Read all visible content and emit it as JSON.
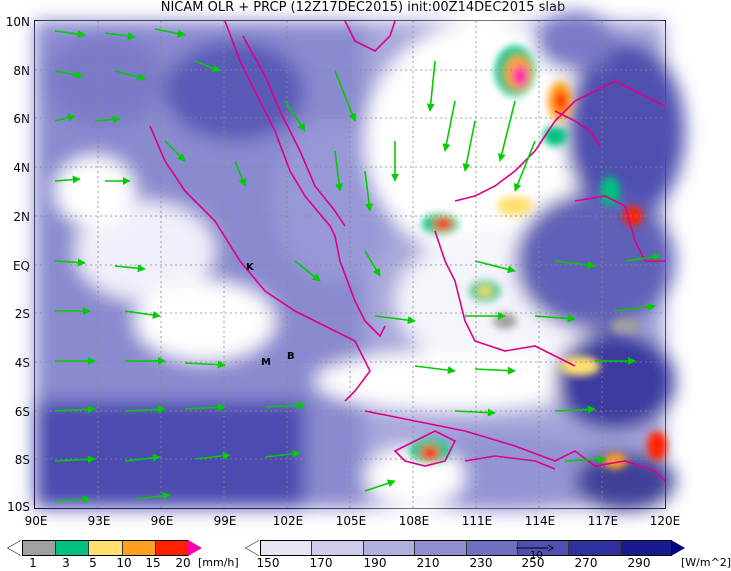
{
  "title": "NICAM OLR + PRCP (12Z17DEC2015) init:00Z14DEC2015 slab",
  "y_axis": {
    "labels": [
      "10N",
      "8N",
      "6N",
      "4N",
      "2N",
      "EQ",
      "2S",
      "4S",
      "6S",
      "8S",
      "10S"
    ]
  },
  "x_axis": {
    "labels": [
      "90E",
      "93E",
      "96E",
      "99E",
      "102E",
      "105E",
      "108E",
      "111E",
      "114E",
      "117E",
      "120E"
    ]
  },
  "markers": [
    {
      "label": "K"
    },
    {
      "label": "M"
    },
    {
      "label": "B"
    }
  ],
  "precip_legend": {
    "ticks": [
      "1",
      "3",
      "5",
      "10",
      "15",
      "20"
    ],
    "unit": "[mm/h]",
    "colors": [
      "#ffffff",
      "#a0a0a0",
      "#00c080",
      "#ffe070",
      "#ffa020",
      "#ff2000",
      "#ff00b0"
    ]
  },
  "olr_legend": {
    "ticks": [
      "150",
      "170",
      "190",
      "210",
      "230",
      "250",
      "270",
      "290"
    ],
    "unit": "[W/m^2]",
    "vector_ref": "10",
    "colors": [
      "#ffffff",
      "#e6e6f5",
      "#cdcdeb",
      "#b0b0e0",
      "#9090d0",
      "#7070c0",
      "#5050b0",
      "#3030a0",
      "#1a1a90",
      "#000080"
    ]
  },
  "colors": {
    "wind_vectors": "#00cc00",
    "coastline": "#dd0088",
    "gridline": "#888888"
  }
}
